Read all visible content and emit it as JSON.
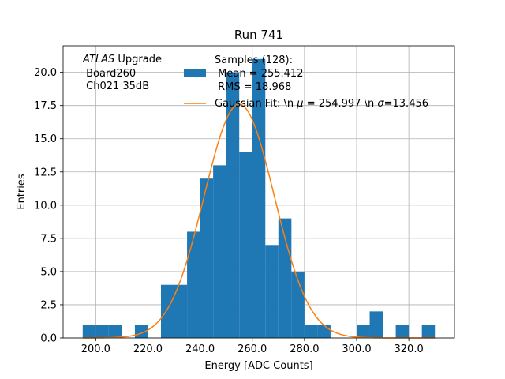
{
  "chart_data": {
    "type": "bar",
    "title": "Run 741",
    "xlabel": "Energy [ADC Counts]",
    "ylabel": "Entries",
    "xlim": [
      187.5,
      337.5
    ],
    "ylim": [
      0,
      22
    ],
    "grid": true,
    "xticks": [
      200,
      220,
      240,
      260,
      280,
      300,
      320
    ],
    "xtick_labels": [
      "200.0",
      "220.0",
      "240.0",
      "260.0",
      "280.0",
      "300.0",
      "320.0"
    ],
    "yticks": [
      0,
      2.5,
      5,
      7.5,
      10,
      12.5,
      15,
      17.5,
      20
    ],
    "ytick_labels": [
      "0.0",
      "2.5",
      "5.0",
      "7.5",
      "10.0",
      "12.5",
      "15.0",
      "17.5",
      "20.0"
    ],
    "bin_edges": [
      195,
      200,
      205,
      210,
      215,
      220,
      225,
      230,
      235,
      240,
      245,
      250,
      255,
      260,
      265,
      270,
      275,
      280,
      285,
      290,
      295,
      300,
      305,
      310,
      315,
      320,
      325,
      330
    ],
    "counts": [
      1,
      1,
      1,
      0,
      1,
      0,
      4,
      4,
      8,
      12,
      13,
      20,
      14,
      21,
      7,
      9,
      5,
      1,
      1,
      0,
      0,
      1,
      2,
      0,
      1,
      0,
      1
    ],
    "fit": {
      "amplitude": 17.6,
      "mu": 254.997,
      "sigma": 13.456
    },
    "colors": {
      "bars": "#1f77b4",
      "fit": "#ff7f0e"
    },
    "annotation": {
      "line1_italic": "ATLAS",
      "line1_rest": " Upgrade",
      "line2": " Board260",
      "line3": " Ch021 35dB"
    },
    "legend": {
      "position": "top-center",
      "hist_lines": [
        "Samples (128):",
        " Mean = 255.412",
        " RMS = 18.968"
      ],
      "fit_prefix": "Gaussian Fit: \\n ",
      "fit_mu_symbol": "μ",
      "fit_mid": " = 254.997 \\n ",
      "fit_sigma_symbol": "σ",
      "fit_suffix": "=13.456"
    }
  }
}
